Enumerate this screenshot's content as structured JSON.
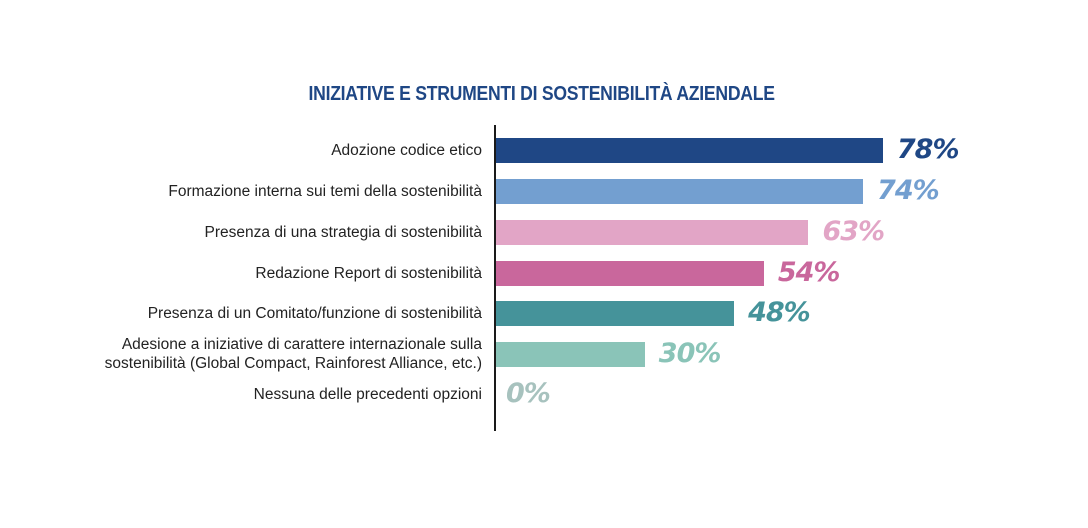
{
  "chart_data": {
    "type": "bar",
    "orientation": "horizontal",
    "title": "INIZIATIVE E STRUMENTI DI SOSTENIBILITÀ AZIENDALE",
    "xlabel": "",
    "ylabel": "",
    "xlim": [
      0,
      100
    ],
    "grid": false,
    "legend": "none",
    "categories": [
      "Adozione codice etico",
      "Formazione interna sui temi della sostenibilità",
      "Presenza di una strategia di sostenibilità",
      "Redazione Report di sostenibilità",
      "Presenza di un Comitato/funzione di sostenibilità",
      "Adesione a iniziative di carattere internazionale sulla\nsostenibilità (Global Compact, Rainforest Alliance, etc.)",
      "Nessuna delle precedenti opzioni"
    ],
    "values": [
      78,
      74,
      63,
      54,
      48,
      30,
      0
    ],
    "value_labels": [
      "78%",
      "74%",
      "63%",
      "54%",
      "48%",
      "30%",
      "0%"
    ],
    "colors": [
      "#1f4785",
      "#739fd0",
      "#e2a5c6",
      "#c9679c",
      "#45939a",
      "#8ac4b8",
      "#a7c2be"
    ]
  }
}
